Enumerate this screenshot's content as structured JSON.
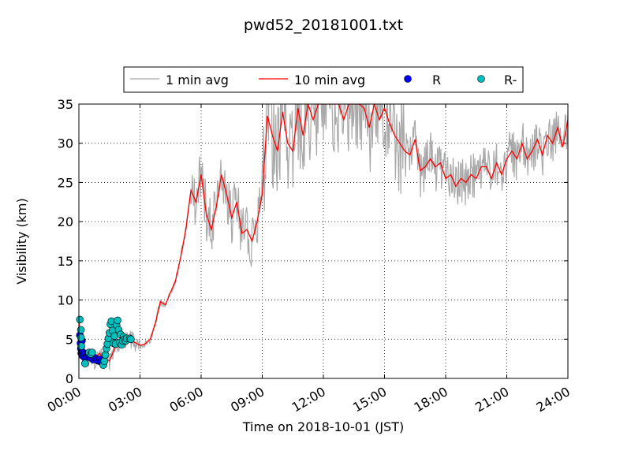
{
  "chart_data": {
    "type": "line",
    "title": "pwd52_20181001.txt",
    "xlabel": "Time on 2018-10-01 (JST)",
    "ylabel": "Visibility (km)",
    "xlim": [
      "00:00",
      "24:00"
    ],
    "ylim": [
      0,
      35
    ],
    "x_ticks": [
      "00:00",
      "03:00",
      "06:00",
      "09:00",
      "12:00",
      "15:00",
      "18:00",
      "21:00",
      "24:00"
    ],
    "y_ticks": [
      "0",
      "5",
      "10",
      "15",
      "20",
      "25",
      "30",
      "35"
    ],
    "grid": true,
    "legend_position": "top-center",
    "legend": [
      {
        "label": "1 min avg",
        "color": "#a9a9a9",
        "kind": "line"
      },
      {
        "label": "10 min avg",
        "color": "#ff0000",
        "kind": "line"
      },
      {
        "label": "R",
        "color": "#0000ff",
        "kind": "marker"
      },
      {
        "label": "R-",
        "color": "#00bfbf",
        "kind": "marker"
      }
    ],
    "series": [
      {
        "name": "10 min avg",
        "color": "#ff0000",
        "x_hours": [
          0,
          0.1,
          0.2,
          0.3,
          0.5,
          0.75,
          1.0,
          1.25,
          1.5,
          1.75,
          2.0,
          2.25,
          2.5,
          2.75,
          3.0,
          3.25,
          3.5,
          3.75,
          4.0,
          4.25,
          4.5,
          4.75,
          5.0,
          5.25,
          5.5,
          5.75,
          6.0,
          6.25,
          6.5,
          6.75,
          7.0,
          7.25,
          7.5,
          7.75,
          8.0,
          8.25,
          8.5,
          8.75,
          9.0,
          9.25,
          9.5,
          9.75,
          10.0,
          10.25,
          10.5,
          10.75,
          11.0,
          11.25,
          11.5,
          11.75,
          12.0,
          12.25,
          12.5,
          12.75,
          13.0,
          13.25,
          13.5,
          13.75,
          14.0,
          14.25,
          14.5,
          14.75,
          15.0,
          15.25,
          15.5,
          15.75,
          16.0,
          16.25,
          16.5,
          16.75,
          17.0,
          17.25,
          17.5,
          17.75,
          18.0,
          18.25,
          18.5,
          18.75,
          19.0,
          19.25,
          19.5,
          19.75,
          20.0,
          20.25,
          20.5,
          20.75,
          21.0,
          21.25,
          21.5,
          21.75,
          22.0,
          22.25,
          22.5,
          22.75,
          23.0,
          23.25,
          23.5,
          23.75,
          24.0
        ],
        "values": [
          7.5,
          3.5,
          2.8,
          2.5,
          2.6,
          2.2,
          3.2,
          2.6,
          2.2,
          3.8,
          4.6,
          4.8,
          5.0,
          4.6,
          4.2,
          4.4,
          5.0,
          7.0,
          9.8,
          9.4,
          11.0,
          12.5,
          15.5,
          19.0,
          24.0,
          22.5,
          26.0,
          21.0,
          19.0,
          22.0,
          26.0,
          23.5,
          20.5,
          22.5,
          18.5,
          19.0,
          17.5,
          20.0,
          23.5,
          33.5,
          31.0,
          29.0,
          34.0,
          30.0,
          29.0,
          34.5,
          31.0,
          35.0,
          33.0,
          35.0,
          35.0,
          35.0,
          35.0,
          35.0,
          33.0,
          35.0,
          35.0,
          35.0,
          34.5,
          32.0,
          35.0,
          33.0,
          34.5,
          32.5,
          31.0,
          30.0,
          29.0,
          28.5,
          30.5,
          26.5,
          27.0,
          28.0,
          27.0,
          27.5,
          25.5,
          26.0,
          24.5,
          25.5,
          25.0,
          26.0,
          25.5,
          27.0,
          27.0,
          25.5,
          27.5,
          26.0,
          28.0,
          29.0,
          28.0,
          30.0,
          28.0,
          29.0,
          30.5,
          28.5,
          31.0,
          30.0,
          32.0,
          29.5,
          33.0
        ]
      }
    ],
    "markers": [
      {
        "name": "R",
        "color": "#0000ff",
        "x_hours": [
          0.05,
          0.08,
          0.1,
          0.12,
          0.15,
          0.18,
          0.2,
          0.25,
          0.3,
          0.4,
          0.5,
          0.6,
          0.7,
          0.8,
          0.9,
          1.0,
          1.05,
          1.1
        ],
        "values": [
          5.5,
          4.5,
          3.8,
          3.2,
          4.8,
          2.9,
          3.3,
          3.0,
          2.6,
          2.8,
          3.0,
          2.6,
          2.4,
          2.6,
          2.3,
          2.2,
          2.4,
          2.1
        ]
      },
      {
        "name": "R-",
        "color": "#00bfbf",
        "x_hours": [
          0.05,
          0.1,
          0.1,
          0.12,
          0.3,
          0.5,
          0.6,
          0.65,
          1.2,
          1.25,
          1.3,
          1.35,
          1.4,
          1.45,
          1.5,
          1.55,
          1.6,
          1.65,
          1.7,
          1.75,
          1.8,
          1.85,
          1.9,
          1.95,
          2.0,
          2.05,
          2.1,
          2.15,
          2.2,
          2.25,
          2.3,
          2.35,
          2.5,
          2.55
        ],
        "values": [
          7.5,
          6.2,
          5.2,
          4.1,
          1.9,
          3.3,
          3.1,
          3.3,
          1.7,
          2.2,
          3.0,
          3.8,
          4.4,
          5.1,
          5.8,
          6.9,
          7.3,
          6.1,
          4.5,
          5.4,
          4.4,
          6.8,
          7.4,
          6.2,
          4.6,
          5.6,
          4.3,
          4.8,
          5.3,
          5.0,
          4.8,
          5.1,
          5.1,
          5.0
        ]
      }
    ]
  }
}
